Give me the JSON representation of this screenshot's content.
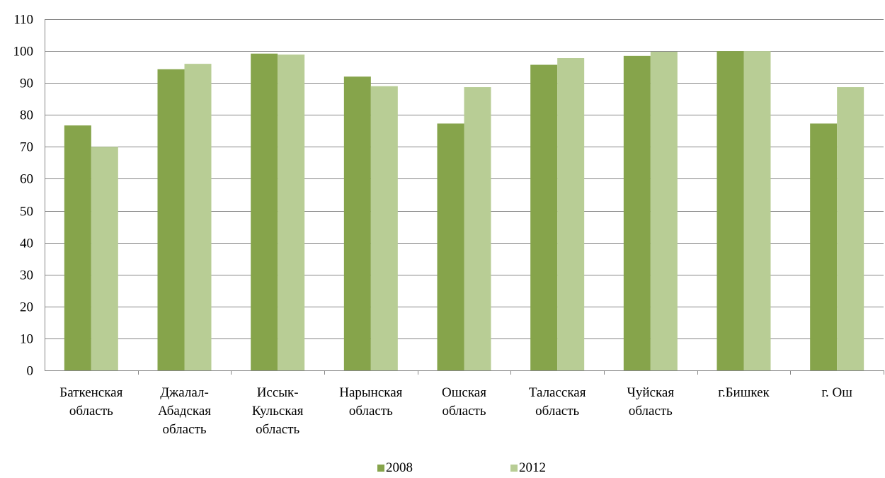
{
  "chart_data": {
    "type": "bar",
    "title": "",
    "xlabel": "",
    "ylabel": "",
    "ylim": [
      0,
      110
    ],
    "yticks": [
      0,
      10,
      20,
      30,
      40,
      50,
      60,
      70,
      80,
      90,
      100,
      110
    ],
    "grid": true,
    "legend_position": "bottom",
    "categories": [
      [
        "Баткенская",
        "область"
      ],
      [
        "Джалал-",
        "Абадская",
        "область"
      ],
      [
        "Иссык-",
        "Кульская",
        "область"
      ],
      [
        "Нарынская",
        "область"
      ],
      [
        "Ошская",
        "область"
      ],
      [
        "Таласская",
        "область"
      ],
      [
        "Чуйская",
        "область"
      ],
      [
        "г.Бишкек"
      ],
      [
        "г. Ош"
      ]
    ],
    "series": [
      {
        "name": "2008",
        "color": "#86a44b",
        "values": [
          76.7,
          94.3,
          99.2,
          92.0,
          77.3,
          95.7,
          98.5,
          100.0,
          77.3
        ]
      },
      {
        "name": "2012",
        "color": "#b8cd95",
        "values": [
          70.0,
          96.0,
          98.9,
          89.0,
          88.7,
          97.8,
          99.8,
          100.0,
          88.7
        ]
      }
    ]
  }
}
